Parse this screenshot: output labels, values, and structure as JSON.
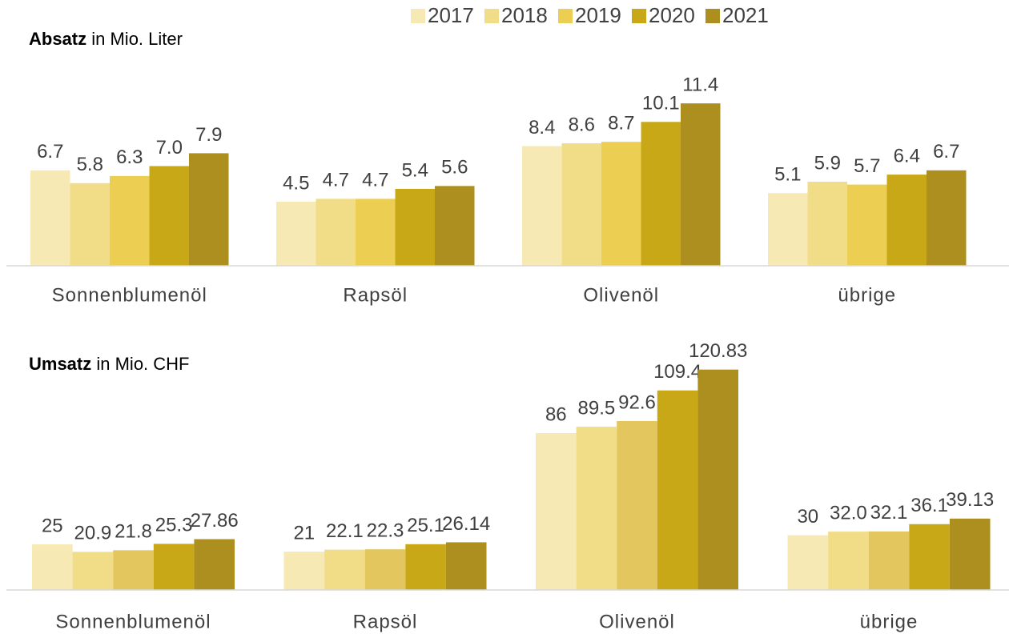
{
  "chart_data": [
    {
      "type": "bar",
      "title_bold": "Absatz",
      "title": "in Mio. Liter",
      "categories": [
        "Sonnenblumenöl",
        "Rapsöl",
        "Olivenöl",
        "übrige"
      ],
      "ylim": [
        0,
        13.6
      ],
      "series": [
        {
          "name": "2017",
          "color": "#f6e9b3",
          "values": [
            6.7,
            4.5,
            8.4,
            5.1
          ]
        },
        {
          "name": "2018",
          "color": "#f1dc88",
          "values": [
            5.8,
            4.7,
            8.6,
            5.9
          ]
        },
        {
          "name": "2019",
          "color": "#ecce52",
          "values": [
            6.3,
            4.7,
            8.7,
            5.7
          ]
        },
        {
          "name": "2020",
          "color": "#c9a818",
          "values": [
            7.0,
            5.4,
            10.1,
            6.4
          ],
          "value_labels": [
            "7.0",
            "5.4",
            "10.1",
            "6.4"
          ]
        },
        {
          "name": "2021",
          "color": "#ad8f1f",
          "values": [
            7.9,
            5.6,
            11.4,
            6.7
          ]
        }
      ]
    },
    {
      "type": "bar",
      "title_bold": "Umsatz",
      "title": "in  Mio. CHF",
      "categories": [
        "Sonnenblumenöl",
        "Rapsöl",
        "Olivenöl",
        "übrige"
      ],
      "ylim": [
        0,
        140
      ],
      "series": [
        {
          "color": "#f6e9b3",
          "values": [
            25,
            21,
            86,
            30
          ]
        },
        {
          "color": "#f1dc88",
          "values": [
            20.9,
            22.1,
            89.5,
            32.0
          ],
          "value_labels": [
            "20.9",
            "22.1",
            "89.5",
            "32.0"
          ]
        },
        {
          "color": "#e3c75e",
          "values": [
            21.8,
            22.3,
            92.6,
            32.1
          ]
        },
        {
          "color": "#c9a818",
          "values": [
            25.3,
            25.1,
            109.4,
            36.1
          ]
        },
        {
          "color": "#ad8f1f",
          "values": [
            27.86,
            26.14,
            120.83,
            39.13
          ]
        }
      ]
    }
  ]
}
